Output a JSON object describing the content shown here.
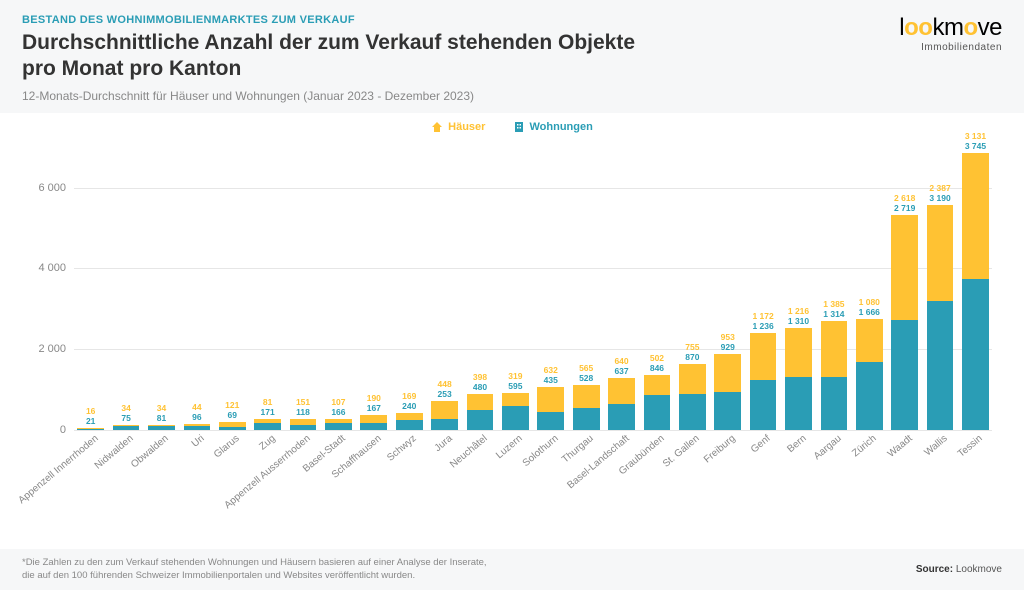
{
  "header": {
    "kicker": "BESTAND DES WOHNIMMOBILIENMARKTES ZUM VERKAUF",
    "title_line1": "Durchschnittliche Anzahl der zum Verkauf stehenden Objekte",
    "title_line2": "pro Monat pro Kanton",
    "subtitle": "12-Monats-Durchschnitt für Häuser und Wohnungen (Januar 2023 - Dezember 2023)"
  },
  "logo": {
    "text": "lookmove",
    "sub": "Immobiliendaten"
  },
  "legend": {
    "series1": {
      "label": "Häuser",
      "color": "#ffc233"
    },
    "series2": {
      "label": "Wohnungen",
      "color": "#2a9db5"
    }
  },
  "chart": {
    "type": "stacked-bar",
    "ymax": 7000,
    "yticks": [
      0,
      2000,
      4000,
      6000
    ],
    "ytick_labels": [
      "0",
      "2 000",
      "4 000",
      "6 000"
    ],
    "background_color": "#ffffff",
    "grid_color": "#e6e6e6",
    "label_fontsize": 10,
    "value_fontsize": 8.5,
    "categories": [
      {
        "name": "Appenzell Innerrhoden",
        "haeuser": 16,
        "wohnungen": 21,
        "h_label": "16",
        "w_label": "21"
      },
      {
        "name": "Nidwalden",
        "haeuser": 34,
        "wohnungen": 75,
        "h_label": "34",
        "w_label": "75"
      },
      {
        "name": "Obwalden",
        "haeuser": 34,
        "wohnungen": 81,
        "h_label": "34",
        "w_label": "81"
      },
      {
        "name": "Uri",
        "haeuser": 44,
        "wohnungen": 96,
        "h_label": "44",
        "w_label": "96"
      },
      {
        "name": "Glarus",
        "haeuser": 121,
        "wohnungen": 69,
        "h_label": "121",
        "w_label": "69"
      },
      {
        "name": "Zug",
        "haeuser": 81,
        "wohnungen": 171,
        "h_label": "81",
        "w_label": "171"
      },
      {
        "name": "Appenzell Ausserrhoden",
        "haeuser": 151,
        "wohnungen": 118,
        "h_label": "151",
        "w_label": "118"
      },
      {
        "name": "Basel-Stadt",
        "haeuser": 107,
        "wohnungen": 166,
        "h_label": "107",
        "w_label": "166"
      },
      {
        "name": "Schaffhausen",
        "haeuser": 190,
        "wohnungen": 167,
        "h_label": "190",
        "w_label": "167"
      },
      {
        "name": "Schwyz",
        "haeuser": 169,
        "wohnungen": 240,
        "h_label": "169",
        "w_label": "240"
      },
      {
        "name": "Jura",
        "haeuser": 448,
        "wohnungen": 253,
        "h_label": "448",
        "w_label": "253"
      },
      {
        "name": "Neuchâtel",
        "haeuser": 398,
        "wohnungen": 480,
        "h_label": "398",
        "w_label": "480"
      },
      {
        "name": "Luzern",
        "haeuser": 319,
        "wohnungen": 595,
        "h_label": "319",
        "w_label": "595"
      },
      {
        "name": "Solothurn",
        "haeuser": 632,
        "wohnungen": 435,
        "h_label": "632",
        "w_label": "435"
      },
      {
        "name": "Thurgau",
        "haeuser": 565,
        "wohnungen": 528,
        "h_label": "565",
        "w_label": "528"
      },
      {
        "name": "Basel-Landschaft",
        "haeuser": 640,
        "wohnungen": 637,
        "h_label": "640",
        "w_label": "637"
      },
      {
        "name": "Graubünden",
        "haeuser": 502,
        "wohnungen": 846,
        "h_label": "502",
        "w_label": "846"
      },
      {
        "name": "St. Gallen",
        "haeuser": 755,
        "wohnungen": 870,
        "h_label": "755",
        "w_label": "870"
      },
      {
        "name": "Freiburg",
        "haeuser": 953,
        "wohnungen": 929,
        "h_label": "953",
        "w_label": "929"
      },
      {
        "name": "Genf",
        "haeuser": 1172,
        "wohnungen": 1236,
        "h_label": "1 172",
        "w_label": "1 236"
      },
      {
        "name": "Bern",
        "haeuser": 1216,
        "wohnungen": 1310,
        "h_label": "1 216",
        "w_label": "1 310"
      },
      {
        "name": "Aargau",
        "haeuser": 1385,
        "wohnungen": 1314,
        "h_label": "1 385",
        "w_label": "1 314"
      },
      {
        "name": "Zürich",
        "haeuser": 1080,
        "wohnungen": 1666,
        "h_label": "1 080",
        "w_label": "1 666"
      },
      {
        "name": "Waadt",
        "haeuser": 2618,
        "wohnungen": 2719,
        "h_label": "2 618",
        "w_label": "2 719"
      },
      {
        "name": "Wallis",
        "haeuser": 2387,
        "wohnungen": 3190,
        "h_label": "2 387",
        "w_label": "3 190"
      },
      {
        "name": "Tessin",
        "haeuser": 3131,
        "wohnungen": 3745,
        "h_label": "3 131",
        "w_label": "3 745"
      }
    ]
  },
  "footer": {
    "note_line1": "*Die Zahlen zu den zum Verkauf stehenden Wohnungen und Häusern basieren auf einer Analyse der Inserate,",
    "note_line2": "die auf den 100 führenden Schweizer Immobilienportalen und Websites veröffentlicht wurden.",
    "source_label": "Source:",
    "source_value": "Lookmove"
  }
}
